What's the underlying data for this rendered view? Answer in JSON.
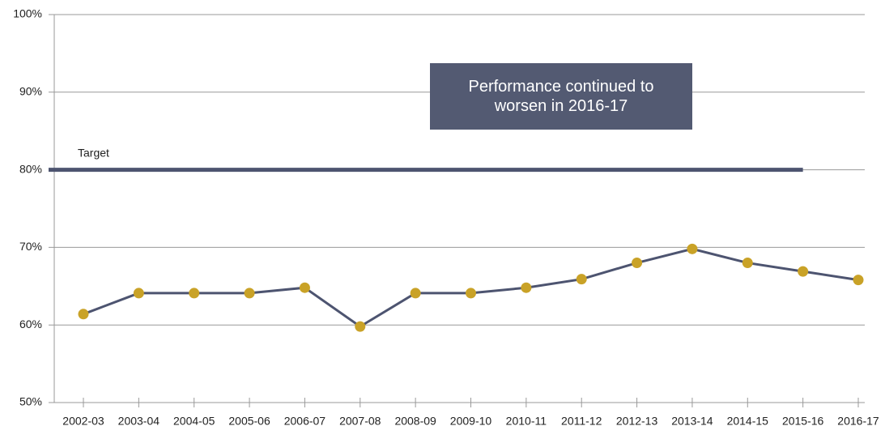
{
  "chart_data": {
    "type": "line",
    "categories": [
      "2002-03",
      "2003-04",
      "2004-05",
      "2005-06",
      "2006-07",
      "2007-08",
      "2008-09",
      "2009-10",
      "2010-11",
      "2011-12",
      "2012-13",
      "2013-14",
      "2014-15",
      "2015-16",
      "2016-17"
    ],
    "series": [
      {
        "values": [
          61.4,
          64.1,
          64.1,
          64.1,
          64.8,
          59.8,
          64.1,
          64.1,
          64.8,
          65.9,
          68,
          69.8,
          68,
          66.9,
          65.8
        ],
        "color": "#4d5470",
        "marker_color": "#c9a227"
      }
    ],
    "target": {
      "label": "Target",
      "value": 80,
      "color": "#4d5470"
    },
    "annotation": "Performance continued to worsen in 2016-17",
    "ylim": [
      50,
      100
    ],
    "yticks": [
      {
        "value": 50,
        "label": "50%"
      },
      {
        "value": 60,
        "label": "60%"
      },
      {
        "value": 70,
        "label": "70%"
      },
      {
        "value": 80,
        "label": "80%"
      },
      {
        "value": 90,
        "label": "90%"
      },
      {
        "value": 100,
        "label": "100%"
      }
    ],
    "grid": true
  }
}
